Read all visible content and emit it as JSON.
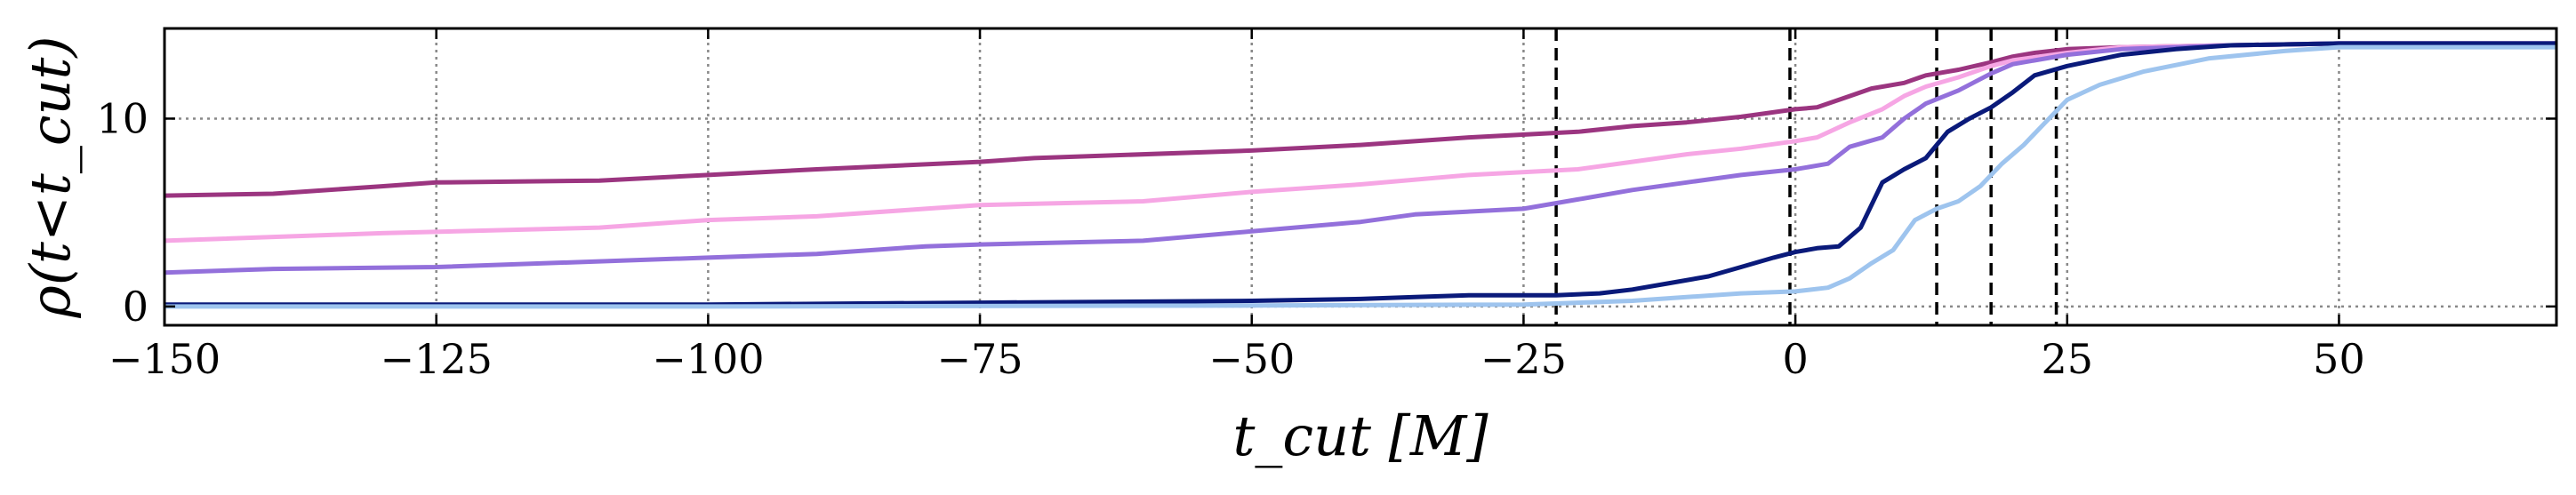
{
  "chart_data": {
    "type": "line",
    "title": "",
    "xlabel": "t_cut [M]",
    "ylabel": "ρ(t<t_cut)",
    "xlim": [
      -150,
      70
    ],
    "ylim": [
      -1,
      14.8
    ],
    "x_ticks": [
      -150,
      -125,
      -100,
      -75,
      -50,
      -25,
      0,
      25,
      50
    ],
    "x_tick_labels": [
      "−150",
      "−125",
      "−100",
      "−75",
      "−50",
      "−25",
      "0",
      "25",
      "50"
    ],
    "y_ticks": [
      0,
      10
    ],
    "y_tick_labels": [
      "0",
      "10"
    ],
    "grid": true,
    "legend": "none",
    "vlines": [
      -22,
      -0.5,
      13,
      18,
      24
    ],
    "series": [
      {
        "color": "#9b3580",
        "points": [
          [
            -150,
            5.9
          ],
          [
            -140,
            6.0
          ],
          [
            -130,
            6.4
          ],
          [
            -125,
            6.6
          ],
          [
            -110,
            6.7
          ],
          [
            -100,
            7.0
          ],
          [
            -90,
            7.3
          ],
          [
            -75,
            7.7
          ],
          [
            -70,
            7.9
          ],
          [
            -50,
            8.3
          ],
          [
            -40,
            8.6
          ],
          [
            -30,
            9.0
          ],
          [
            -20,
            9.3
          ],
          [
            -15,
            9.6
          ],
          [
            -10,
            9.8
          ],
          [
            -5,
            10.1
          ],
          [
            0,
            10.5
          ],
          [
            2,
            10.6
          ],
          [
            5,
            11.2
          ],
          [
            7,
            11.6
          ],
          [
            10,
            11.9
          ],
          [
            12,
            12.3
          ],
          [
            15,
            12.6
          ],
          [
            18,
            13.0
          ],
          [
            20,
            13.3
          ],
          [
            22,
            13.5
          ],
          [
            25,
            13.7
          ],
          [
            30,
            13.8
          ],
          [
            40,
            13.9
          ],
          [
            50,
            14.0
          ],
          [
            70,
            14.0
          ]
        ]
      },
      {
        "color": "#f6a6e4",
        "points": [
          [
            -150,
            3.5
          ],
          [
            -130,
            3.9
          ],
          [
            -110,
            4.2
          ],
          [
            -100,
            4.6
          ],
          [
            -90,
            4.8
          ],
          [
            -80,
            5.2
          ],
          [
            -75,
            5.4
          ],
          [
            -60,
            5.6
          ],
          [
            -50,
            6.1
          ],
          [
            -40,
            6.5
          ],
          [
            -30,
            7.0
          ],
          [
            -20,
            7.3
          ],
          [
            -15,
            7.7
          ],
          [
            -10,
            8.1
          ],
          [
            -5,
            8.4
          ],
          [
            0,
            8.8
          ],
          [
            2,
            9.0
          ],
          [
            5,
            9.8
          ],
          [
            8,
            10.5
          ],
          [
            10,
            11.2
          ],
          [
            12,
            11.7
          ],
          [
            15,
            12.2
          ],
          [
            18,
            12.8
          ],
          [
            20,
            13.1
          ],
          [
            25,
            13.5
          ],
          [
            30,
            13.8
          ],
          [
            40,
            13.9
          ],
          [
            50,
            14.0
          ],
          [
            70,
            14.0
          ]
        ]
      },
      {
        "color": "#9370db",
        "points": [
          [
            -150,
            1.8
          ],
          [
            -140,
            2.0
          ],
          [
            -125,
            2.1
          ],
          [
            -110,
            2.4
          ],
          [
            -100,
            2.6
          ],
          [
            -90,
            2.8
          ],
          [
            -80,
            3.2
          ],
          [
            -75,
            3.3
          ],
          [
            -60,
            3.5
          ],
          [
            -50,
            4.0
          ],
          [
            -40,
            4.5
          ],
          [
            -35,
            4.9
          ],
          [
            -25,
            5.2
          ],
          [
            -20,
            5.7
          ],
          [
            -15,
            6.2
          ],
          [
            -10,
            6.6
          ],
          [
            -5,
            7.0
          ],
          [
            0,
            7.3
          ],
          [
            3,
            7.6
          ],
          [
            5,
            8.5
          ],
          [
            8,
            9.0
          ],
          [
            10,
            10.0
          ],
          [
            12,
            10.8
          ],
          [
            15,
            11.5
          ],
          [
            18,
            12.4
          ],
          [
            20,
            12.9
          ],
          [
            25,
            13.4
          ],
          [
            30,
            13.7
          ],
          [
            40,
            13.9
          ],
          [
            50,
            14.0
          ],
          [
            70,
            14.0
          ]
        ]
      },
      {
        "color": "#0a1a7a",
        "points": [
          [
            -150,
            0.1
          ],
          [
            -125,
            0.1
          ],
          [
            -100,
            0.1
          ],
          [
            -75,
            0.2
          ],
          [
            -50,
            0.3
          ],
          [
            -40,
            0.4
          ],
          [
            -35,
            0.5
          ],
          [
            -30,
            0.6
          ],
          [
            -22,
            0.6
          ],
          [
            -18,
            0.7
          ],
          [
            -15,
            0.9
          ],
          [
            -12,
            1.2
          ],
          [
            -8,
            1.6
          ],
          [
            -5,
            2.1
          ],
          [
            -2,
            2.6
          ],
          [
            0,
            2.9
          ],
          [
            2,
            3.1
          ],
          [
            4,
            3.2
          ],
          [
            6,
            4.2
          ],
          [
            8,
            6.6
          ],
          [
            10,
            7.3
          ],
          [
            12,
            7.9
          ],
          [
            14,
            9.3
          ],
          [
            16,
            10.0
          ],
          [
            18,
            10.6
          ],
          [
            20,
            11.4
          ],
          [
            22,
            12.3
          ],
          [
            25,
            12.8
          ],
          [
            30,
            13.4
          ],
          [
            35,
            13.7
          ],
          [
            40,
            13.9
          ],
          [
            50,
            14.0
          ],
          [
            70,
            14.0
          ]
        ]
      },
      {
        "color": "#9ec4ee",
        "points": [
          [
            -150,
            0.0
          ],
          [
            -100,
            0.0
          ],
          [
            -50,
            0.05
          ],
          [
            -25,
            0.1
          ],
          [
            -20,
            0.2
          ],
          [
            -15,
            0.3
          ],
          [
            -10,
            0.5
          ],
          [
            -5,
            0.7
          ],
          [
            0,
            0.8
          ],
          [
            3,
            1.0
          ],
          [
            5,
            1.5
          ],
          [
            7,
            2.3
          ],
          [
            9,
            3.0
          ],
          [
            11,
            4.6
          ],
          [
            13,
            5.2
          ],
          [
            15,
            5.6
          ],
          [
            17,
            6.4
          ],
          [
            19,
            7.6
          ],
          [
            21,
            8.6
          ],
          [
            23,
            9.8
          ],
          [
            25,
            11.0
          ],
          [
            28,
            11.8
          ],
          [
            32,
            12.5
          ],
          [
            38,
            13.2
          ],
          [
            45,
            13.6
          ],
          [
            50,
            13.8
          ],
          [
            70,
            13.8
          ]
        ]
      }
    ]
  }
}
